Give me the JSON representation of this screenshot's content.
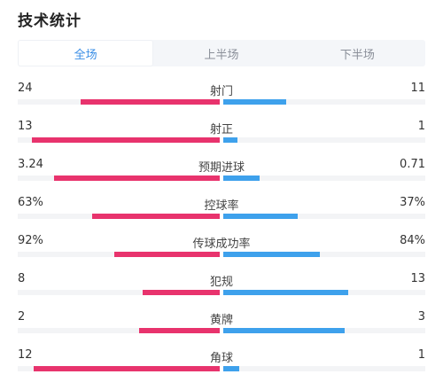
{
  "title": "技术统计",
  "tabs": [
    {
      "label": "全场",
      "active": true
    },
    {
      "label": "上半场",
      "active": false
    },
    {
      "label": "下半场",
      "active": false
    }
  ],
  "colors": {
    "home": "#e8336d",
    "away": "#3ea1ec",
    "active_tab": "#3a8ee6"
  },
  "stats": [
    {
      "label": "射门",
      "home": "24",
      "away": "11",
      "home_frac": 0.69,
      "away_frac": 0.31
    },
    {
      "label": "射正",
      "home": "13",
      "away": "1",
      "home_frac": 0.93,
      "away_frac": 0.07
    },
    {
      "label": "预期进球",
      "home": "3.24",
      "away": "0.71",
      "home_frac": 0.82,
      "away_frac": 0.18
    },
    {
      "label": "控球率",
      "home": "63%",
      "away": "37%",
      "home_frac": 0.63,
      "away_frac": 0.37
    },
    {
      "label": "传球成功率",
      "home": "92%",
      "away": "84%",
      "home_frac": 0.52,
      "away_frac": 0.48
    },
    {
      "label": "犯规",
      "home": "8",
      "away": "13",
      "home_frac": 0.38,
      "away_frac": 0.62
    },
    {
      "label": "黄牌",
      "home": "2",
      "away": "3",
      "home_frac": 0.4,
      "away_frac": 0.6
    },
    {
      "label": "角球",
      "home": "12",
      "away": "1",
      "home_frac": 0.92,
      "away_frac": 0.08
    }
  ]
}
